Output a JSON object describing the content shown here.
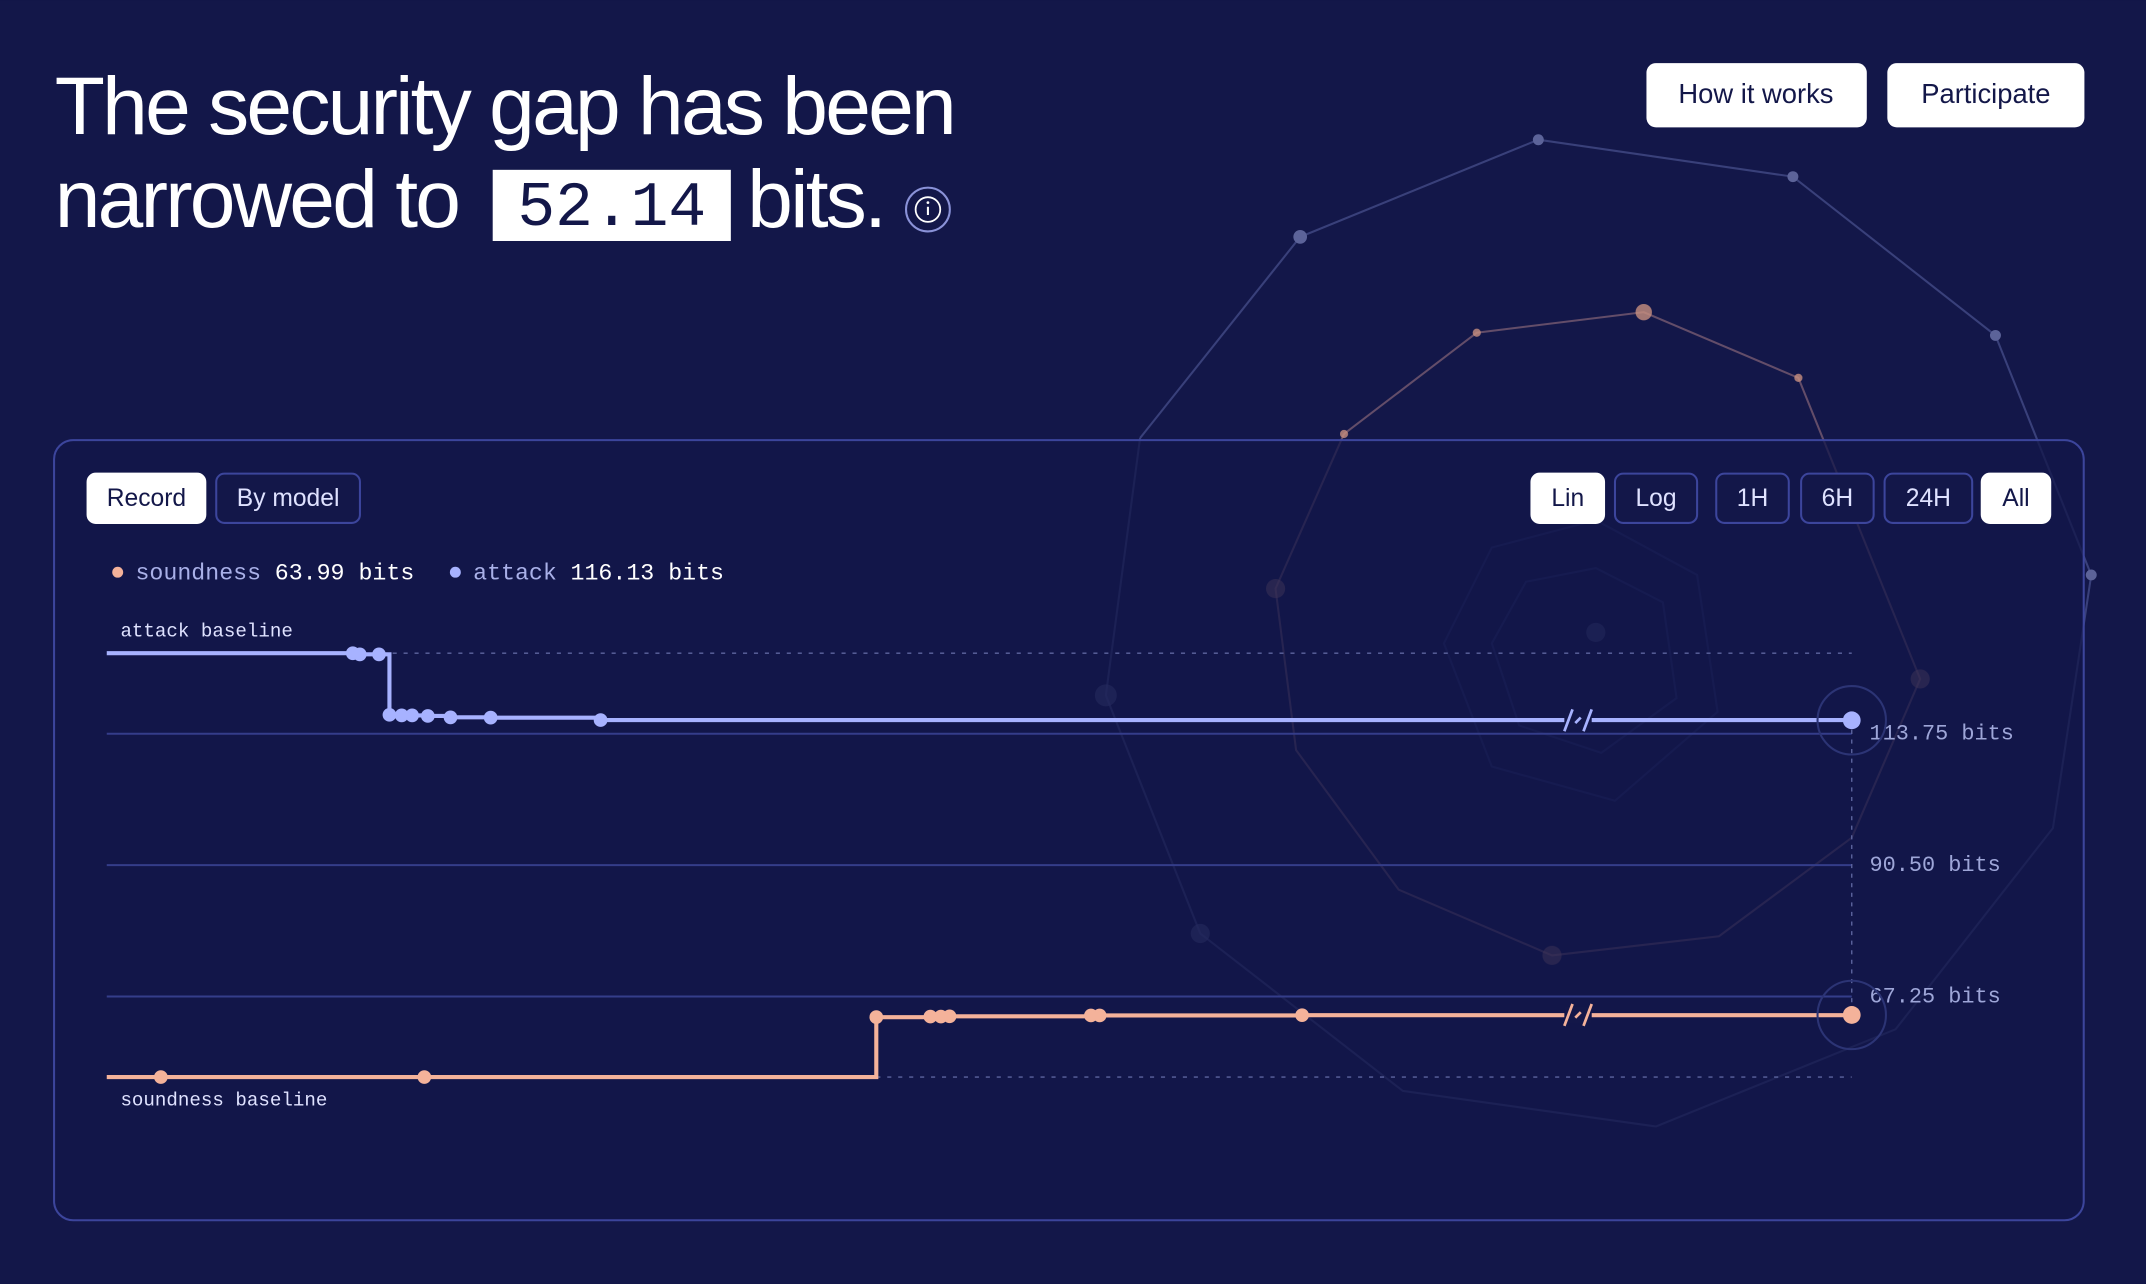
{
  "header": {
    "title_line1": "The security gap has been",
    "title_line2": "narrowed to",
    "gap_value": "52.14",
    "title_end": "bits."
  },
  "nav": [
    "How it works",
    "Participate"
  ],
  "view_tabs": [
    "Record",
    "By model"
  ],
  "scale_tabs": [
    "Lin",
    "Log"
  ],
  "range_tabs": [
    "1H",
    "6H",
    "24H",
    "All"
  ],
  "chart_data": {
    "type": "step-line",
    "xlim": [
      0,
      100
    ],
    "ylim": [
      45,
      135
    ],
    "yticks": [
      {
        "value": 113.75,
        "label": "113.75 bits"
      },
      {
        "value": 90.5,
        "label": "90.50 bits"
      },
      {
        "value": 67.25,
        "label": "67.25 bits"
      }
    ],
    "grid": true,
    "baselines": [
      {
        "label": "attack baseline",
        "value": 128
      },
      {
        "label": "soundness baseline",
        "value": 53
      }
    ],
    "series": [
      {
        "name": "soundness",
        "legend_value": "63.99 bits",
        "color": "#f4b29a",
        "x": [
          0,
          3.1,
          18.2,
          44.1,
          47.2,
          47.8,
          48.3,
          56.4,
          56.9,
          68.5,
          100
        ],
        "values": [
          53,
          53,
          53,
          63.6,
          63.7,
          63.7,
          63.75,
          63.9,
          63.9,
          63.95,
          63.99
        ]
      },
      {
        "name": "attack",
        "legend_value": "116.13 bits",
        "color": "#a7b2ff",
        "x": [
          0,
          14.1,
          14.5,
          15.6,
          16.2,
          16.9,
          17.5,
          18.4,
          19.7,
          22.0,
          28.3,
          100
        ],
        "values": [
          128,
          128,
          127.8,
          127.8,
          117.1,
          117.0,
          117.0,
          116.9,
          116.65,
          116.6,
          116.17,
          116.13
        ]
      }
    ]
  }
}
